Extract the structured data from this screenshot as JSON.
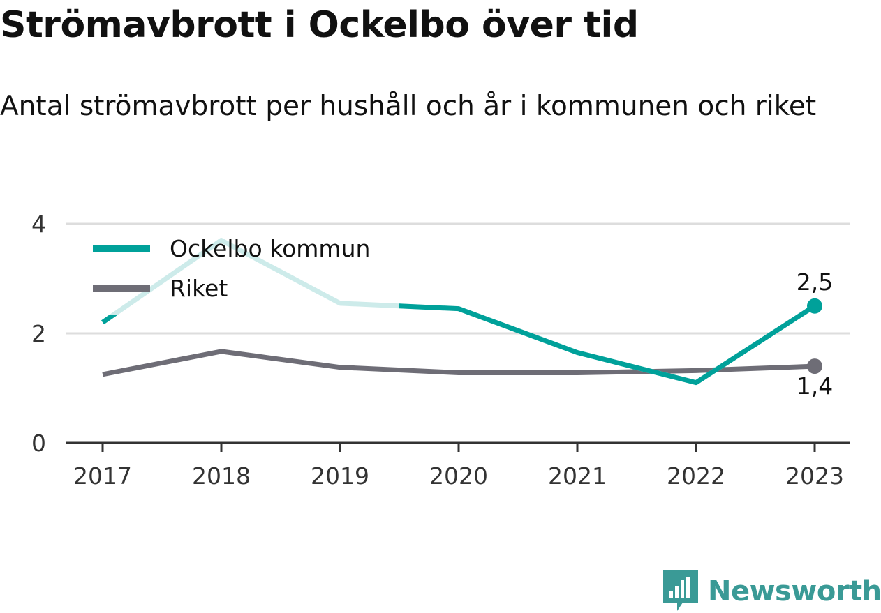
{
  "header": {
    "title": "Strömavbrott i Ockelbo över tid",
    "subtitle": "Antal strömavbrott per hushåll och år i kommunen och riket"
  },
  "brand": {
    "name": "Newsworthy"
  },
  "colors": {
    "ockelbo": "#00a19a",
    "ockelbo_faded": "#cdebea",
    "riket": "#6e6d76",
    "grid": "#dddddd",
    "axis": "#333333"
  },
  "chart_data": {
    "type": "line",
    "categories": [
      "2017",
      "2018",
      "2019",
      "2020",
      "2021",
      "2022",
      "2023"
    ],
    "y_ticks": [
      "0",
      "2",
      "4"
    ],
    "ylim": [
      0,
      4
    ],
    "grid": true,
    "legend_position": "top-left",
    "series": [
      {
        "name": "Ockelbo kommun",
        "values": [
          2.2,
          3.7,
          2.55,
          2.45,
          1.65,
          1.1,
          2.5
        ],
        "end_label": "2,5"
      },
      {
        "name": "Riket",
        "values": [
          1.25,
          1.67,
          1.38,
          1.28,
          1.28,
          1.32,
          1.4
        ],
        "end_label": "1,4"
      }
    ]
  }
}
